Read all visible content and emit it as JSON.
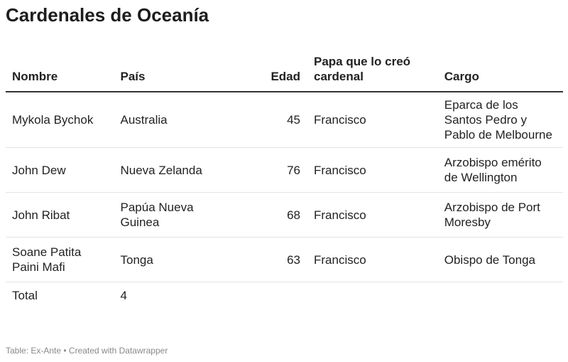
{
  "header": {
    "title": "Cardenales de Oceanía"
  },
  "table": {
    "columns": [
      "Nombre",
      "País",
      "Edad",
      "Papa que lo creó cardenal",
      "Cargo"
    ],
    "rows": [
      [
        "Mykola Bychok",
        "Australia",
        45,
        "Francisco",
        "Eparca de los Santos Pedro y Pablo de Melbourne"
      ],
      [
        "John Dew",
        "Nueva Zelanda",
        76,
        "Francisco",
        "Arzobispo emérito de Wellington"
      ],
      [
        "John Ribat",
        "Papúa Nueva Guinea",
        68,
        "Francisco",
        "Arzobispo de Port Moresby"
      ],
      [
        "Soane Patita Paini Mafi",
        "Tonga",
        63,
        "Francisco",
        "Obispo de Tonga"
      ]
    ],
    "total": [
      "Total",
      4
    ]
  },
  "footer": {
    "note": "Table: Ex-Ante • Created with Datawrapper"
  }
}
